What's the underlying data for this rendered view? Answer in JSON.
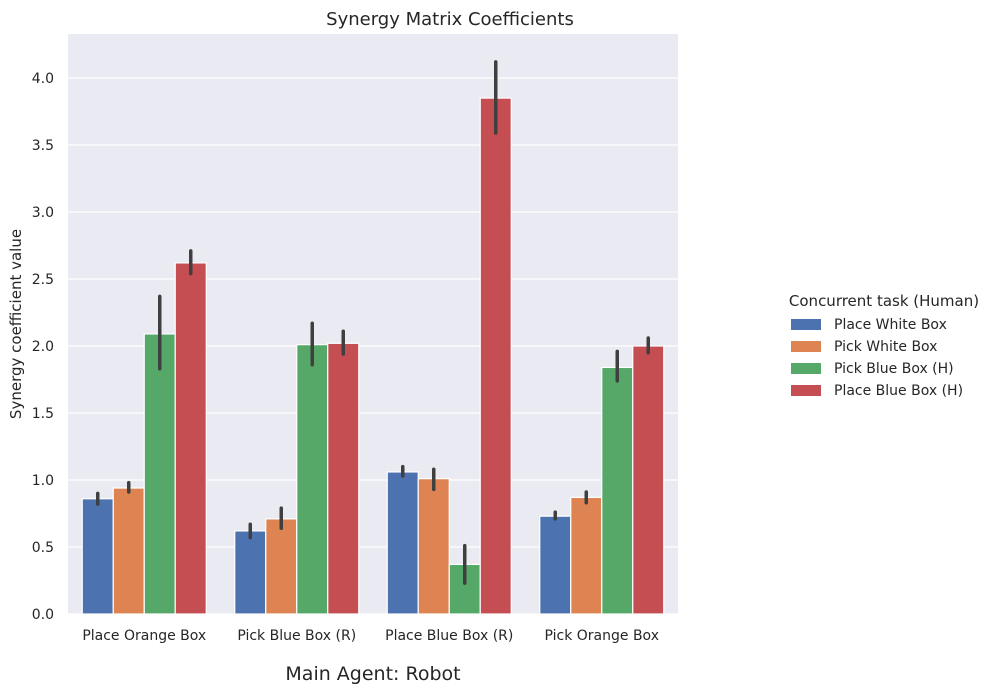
{
  "chart_data": {
    "type": "bar",
    "title": "Synergy Matrix Coefficients",
    "xlabel": "Main Agent: Robot",
    "ylabel": "Synergy coefficient value",
    "ylim": [
      0,
      4.3
    ],
    "yticks": [
      "0.0",
      "0.5",
      "1.0",
      "1.5",
      "2.0",
      "2.5",
      "3.0",
      "3.5",
      "4.0"
    ],
    "grid": true,
    "legend": {
      "title": "Concurrent task (Human)",
      "placement": "right-outside"
    },
    "categories": [
      "Place Orange Box",
      "Pick Blue Box (R)",
      "Place Blue Box (R)",
      "Pick Orange Box"
    ],
    "series": [
      {
        "name": "Place White Box",
        "color": "#4c72b0",
        "values": [
          0.86,
          0.62,
          1.06,
          0.73
        ],
        "err_low": [
          0.82,
          0.57,
          1.03,
          0.71
        ],
        "err_high": [
          0.9,
          0.67,
          1.1,
          0.76
        ]
      },
      {
        "name": "Pick White Box",
        "color": "#dd8452",
        "values": [
          0.94,
          0.71,
          1.01,
          0.87
        ],
        "err_low": [
          0.91,
          0.64,
          0.93,
          0.83
        ],
        "err_high": [
          0.98,
          0.79,
          1.08,
          0.91
        ]
      },
      {
        "name": "Pick Blue Box (H)",
        "color": "#55a868",
        "values": [
          2.09,
          2.01,
          0.37,
          1.84
        ],
        "err_low": [
          1.83,
          1.86,
          0.23,
          1.74
        ],
        "err_high": [
          2.37,
          2.17,
          0.51,
          1.96
        ]
      },
      {
        "name": "Place Blue Box (H)",
        "color": "#c44e52",
        "values": [
          2.62,
          2.02,
          3.85,
          2.0
        ],
        "err_low": [
          2.54,
          1.94,
          3.59,
          1.95
        ],
        "err_high": [
          2.71,
          2.11,
          4.12,
          2.06
        ]
      }
    ]
  }
}
